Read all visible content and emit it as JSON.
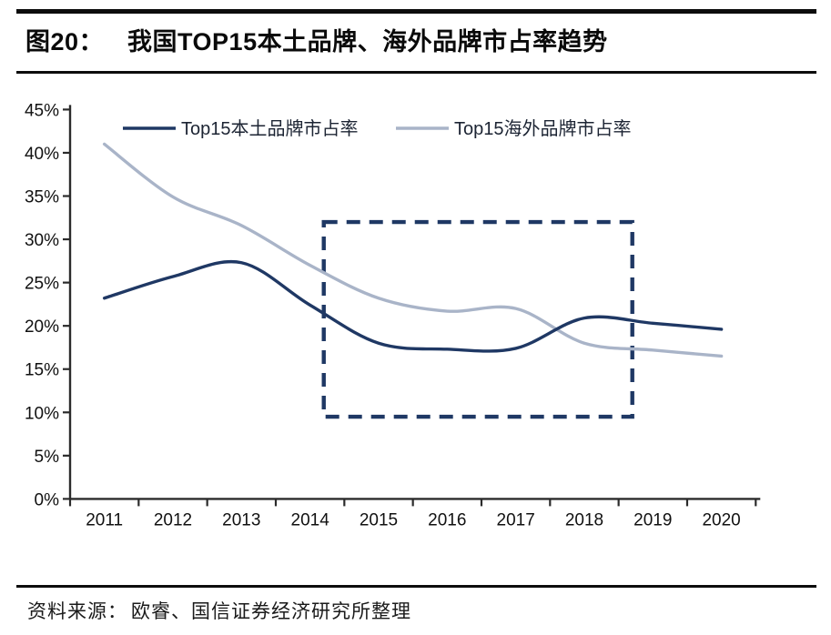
{
  "header": {
    "figure_label": "图20：",
    "title": "我国TOP15本土品牌、海外品牌市占率趋势"
  },
  "footer": {
    "source_label": "资料来源：",
    "source_text": "欧睿、国信证券经济研究所整理"
  },
  "colors": {
    "domestic_line": "#1f3864",
    "overseas_line": "#a9b4c8",
    "annotation_box": "#1f3864",
    "axis": "#2b2b2b",
    "axis_label": "#111111",
    "legend_text": "#1c2433",
    "rule": "#0c0c0c"
  },
  "chart_data": {
    "type": "line",
    "smooth": true,
    "grid": false,
    "legend_position": "top",
    "title": "",
    "xlabel": "",
    "ylabel": "",
    "categories": [
      "2011",
      "2012",
      "2013",
      "2014",
      "2015",
      "2016",
      "2017",
      "2018",
      "2019",
      "2020"
    ],
    "series": [
      {
        "name": "Top15本土品牌市占率",
        "color": "#1f3864",
        "values": [
          23.2,
          25.7,
          27.3,
          22.4,
          18.0,
          17.3,
          17.4,
          20.9,
          20.3,
          19.6
        ]
      },
      {
        "name": "Top15海外品牌市占率",
        "color": "#a9b4c8",
        "values": [
          41.0,
          34.9,
          31.6,
          27.0,
          23.2,
          21.7,
          22.0,
          18.0,
          17.2,
          16.5
        ]
      }
    ],
    "ylim": [
      0,
      45
    ],
    "y_tick_labels": [
      "0%",
      "5%",
      "10%",
      "15%",
      "20%",
      "25%",
      "30%",
      "35%",
      "40%",
      "45%"
    ],
    "annotation_box": {
      "year_start": 2014.2,
      "year_end": 2018.7,
      "pct_low": 9.5,
      "pct_high": 32.0,
      "style": "dashed",
      "color": "#1f3864"
    }
  }
}
